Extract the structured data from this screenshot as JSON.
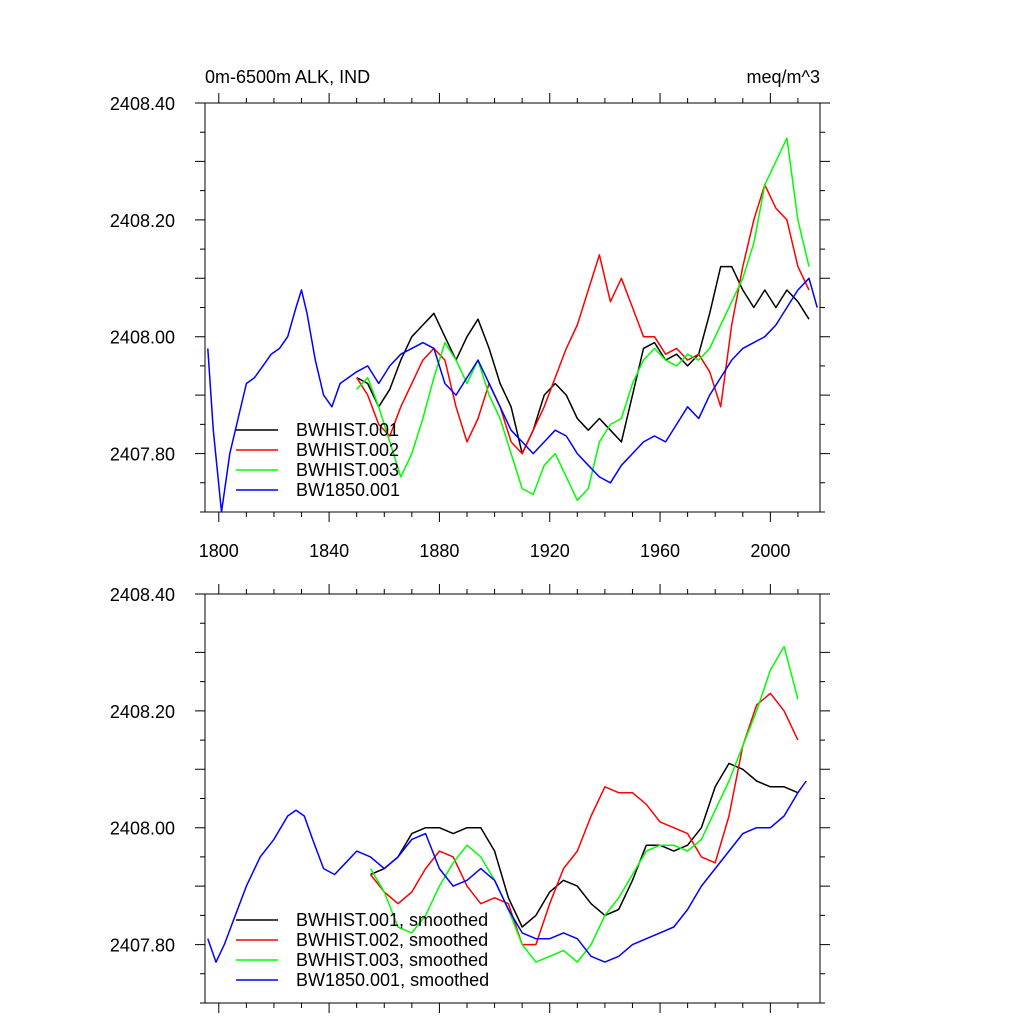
{
  "figure": {
    "title_left": "0m-6500m ALK, IND",
    "title_right": "meq/m^3"
  },
  "chart_data": [
    {
      "type": "line",
      "title": "0m-6500m ALK, IND",
      "unit_label": "meq/m^3",
      "xlim": [
        1795,
        2018
      ],
      "ylim": [
        2407.7,
        2408.4
      ],
      "x_ticks": [
        1800,
        1840,
        1880,
        1920,
        1960,
        2000
      ],
      "x_tick_labels": [
        "1800",
        "1840",
        "1880",
        "1920",
        "1960",
        "2000"
      ],
      "y_ticks": [
        2407.8,
        2408.0,
        2408.2,
        2408.4
      ],
      "y_tick_labels": [
        "2407.80",
        "2408.00",
        "2408.20",
        "2408.40"
      ],
      "legend_position": "bottom-left",
      "grid": false,
      "series": [
        {
          "name": "BWHIST.001",
          "color": "#000000",
          "x": [
            1850,
            1854,
            1858,
            1862,
            1866,
            1870,
            1874,
            1878,
            1882,
            1886,
            1890,
            1894,
            1898,
            1902,
            1906,
            1910,
            1914,
            1918,
            1922,
            1926,
            1930,
            1934,
            1938,
            1942,
            1946,
            1950,
            1954,
            1958,
            1962,
            1966,
            1970,
            1974,
            1978,
            1982,
            1986,
            1990,
            1994,
            1998,
            2002,
            2006,
            2010,
            2014
          ],
          "y": [
            2407.93,
            2407.92,
            2407.88,
            2407.91,
            2407.96,
            2408.0,
            2408.02,
            2408.04,
            2408.0,
            2407.96,
            2408.0,
            2408.03,
            2407.98,
            2407.92,
            2407.88,
            2407.8,
            2407.84,
            2407.9,
            2407.92,
            2407.9,
            2407.86,
            2407.84,
            2407.86,
            2407.84,
            2407.82,
            2407.9,
            2407.98,
            2407.99,
            2407.96,
            2407.97,
            2407.95,
            2407.97,
            2408.04,
            2408.12,
            2408.12,
            2408.08,
            2408.05,
            2408.08,
            2408.05,
            2408.08,
            2408.06,
            2408.03
          ]
        },
        {
          "name": "BWHIST.002",
          "color": "#ff0000",
          "x": [
            1850,
            1854,
            1858,
            1862,
            1866,
            1870,
            1874,
            1878,
            1882,
            1886,
            1890,
            1894,
            1898,
            1902,
            1906,
            1910,
            1914,
            1918,
            1922,
            1926,
            1930,
            1934,
            1938,
            1942,
            1946,
            1950,
            1954,
            1958,
            1962,
            1966,
            1970,
            1974,
            1978,
            1982,
            1986,
            1990,
            1994,
            1998,
            2002,
            2006,
            2010,
            2014
          ],
          "y": [
            2407.93,
            2407.9,
            2407.85,
            2407.83,
            2407.88,
            2407.92,
            2407.96,
            2407.98,
            2407.96,
            2407.88,
            2407.82,
            2407.86,
            2407.92,
            2407.88,
            2407.82,
            2407.8,
            2407.84,
            2407.88,
            2407.93,
            2407.98,
            2408.02,
            2408.08,
            2408.14,
            2408.06,
            2408.1,
            2408.05,
            2408.0,
            2408.0,
            2407.97,
            2407.98,
            2407.96,
            2407.97,
            2407.94,
            2407.88,
            2408.02,
            2408.12,
            2408.2,
            2408.26,
            2408.22,
            2408.2,
            2408.12,
            2408.08
          ]
        },
        {
          "name": "BWHIST.003",
          "color": "#00ff00",
          "x": [
            1850,
            1854,
            1858,
            1862,
            1866,
            1870,
            1874,
            1878,
            1882,
            1886,
            1890,
            1894,
            1898,
            1902,
            1906,
            1910,
            1914,
            1918,
            1922,
            1926,
            1930,
            1934,
            1938,
            1942,
            1946,
            1950,
            1954,
            1958,
            1962,
            1966,
            1970,
            1974,
            1978,
            1982,
            1986,
            1990,
            1994,
            1998,
            2002,
            2006,
            2010,
            2014
          ],
          "y": [
            2407.91,
            2407.93,
            2407.88,
            2407.82,
            2407.76,
            2407.8,
            2407.86,
            2407.93,
            2407.99,
            2407.96,
            2407.92,
            2407.96,
            2407.9,
            2407.86,
            2407.8,
            2407.74,
            2407.73,
            2407.78,
            2407.8,
            2407.76,
            2407.72,
            2407.74,
            2407.82,
            2407.85,
            2407.86,
            2407.92,
            2407.96,
            2407.98,
            2407.96,
            2407.95,
            2407.97,
            2407.96,
            2407.98,
            2408.02,
            2408.06,
            2408.1,
            2408.16,
            2408.26,
            2408.3,
            2408.34,
            2408.2,
            2408.12
          ]
        },
        {
          "name": "BW1850.001",
          "color": "#0000ff",
          "x": [
            1796,
            1798,
            1801,
            1804,
            1807,
            1810,
            1813,
            1816,
            1819,
            1822,
            1825,
            1828,
            1830,
            1832,
            1835,
            1838,
            1841,
            1844,
            1847,
            1850,
            1854,
            1858,
            1862,
            1866,
            1870,
            1874,
            1878,
            1882,
            1886,
            1890,
            1894,
            1898,
            1902,
            1906,
            1910,
            1914,
            1918,
            1922,
            1926,
            1930,
            1934,
            1938,
            1942,
            1946,
            1950,
            1954,
            1958,
            1962,
            1966,
            1970,
            1974,
            1978,
            1982,
            1986,
            1990,
            1994,
            1998,
            2002,
            2006,
            2010,
            2014,
            2017
          ],
          "y": [
            2407.98,
            2407.84,
            2407.7,
            2407.8,
            2407.86,
            2407.92,
            2407.93,
            2407.95,
            2407.97,
            2407.98,
            2408.0,
            2408.05,
            2408.08,
            2408.04,
            2407.96,
            2407.9,
            2407.88,
            2407.92,
            2407.93,
            2407.94,
            2407.95,
            2407.92,
            2407.95,
            2407.97,
            2407.98,
            2407.99,
            2407.98,
            2407.92,
            2407.9,
            2407.93,
            2407.96,
            2407.92,
            2407.88,
            2407.84,
            2407.82,
            2407.8,
            2407.82,
            2407.84,
            2407.83,
            2407.8,
            2407.78,
            2407.76,
            2407.75,
            2407.78,
            2407.8,
            2407.82,
            2407.83,
            2407.82,
            2407.85,
            2407.88,
            2407.86,
            2407.9,
            2407.93,
            2407.96,
            2407.98,
            2407.99,
            2408.0,
            2408.02,
            2408.05,
            2408.08,
            2408.1,
            2408.05
          ]
        }
      ]
    },
    {
      "type": "line",
      "title": "",
      "xlim": [
        1795,
        2018
      ],
      "ylim": [
        2407.7,
        2408.4
      ],
      "x_ticks": [
        1800,
        1840,
        1880,
        1920,
        1960,
        2000
      ],
      "x_tick_labels": [],
      "y_ticks": [
        2407.8,
        2408.0,
        2408.2,
        2408.4
      ],
      "y_tick_labels": [
        "2407.80",
        "2408.00",
        "2408.20",
        "2408.40"
      ],
      "legend_position": "bottom-left",
      "grid": false,
      "series": [
        {
          "name": "BWHIST.001, smoothed",
          "color": "#000000",
          "x": [
            1855,
            1860,
            1865,
            1870,
            1875,
            1880,
            1885,
            1890,
            1895,
            1900,
            1905,
            1910,
            1915,
            1920,
            1925,
            1930,
            1935,
            1940,
            1945,
            1950,
            1955,
            1960,
            1965,
            1970,
            1975,
            1980,
            1985,
            1990,
            1995,
            2000,
            2005,
            2010
          ],
          "y": [
            2407.92,
            2407.93,
            2407.95,
            2407.99,
            2408.0,
            2408.0,
            2407.99,
            2408.0,
            2408.0,
            2407.96,
            2407.88,
            2407.83,
            2407.85,
            2407.89,
            2407.91,
            2407.9,
            2407.87,
            2407.85,
            2407.86,
            2407.91,
            2407.97,
            2407.97,
            2407.96,
            2407.97,
            2408.0,
            2408.07,
            2408.11,
            2408.1,
            2408.08,
            2408.07,
            2408.07,
            2408.06
          ]
        },
        {
          "name": "BWHIST.002, smoothed",
          "color": "#ff0000",
          "x": [
            1855,
            1860,
            1865,
            1870,
            1875,
            1880,
            1885,
            1890,
            1895,
            1900,
            1905,
            1910,
            1915,
            1920,
            1925,
            1930,
            1935,
            1940,
            1945,
            1950,
            1955,
            1960,
            1965,
            1970,
            1975,
            1980,
            1985,
            1990,
            1995,
            2000,
            2005,
            2010
          ],
          "y": [
            2407.92,
            2407.89,
            2407.87,
            2407.89,
            2407.93,
            2407.96,
            2407.95,
            2407.9,
            2407.87,
            2407.88,
            2407.87,
            2407.8,
            2407.8,
            2407.87,
            2407.93,
            2407.96,
            2408.02,
            2408.07,
            2408.06,
            2408.06,
            2408.04,
            2408.01,
            2408.0,
            2407.99,
            2407.95,
            2407.94,
            2408.02,
            2408.14,
            2408.21,
            2408.23,
            2408.2,
            2408.15
          ]
        },
        {
          "name": "BWHIST.003, smoothed",
          "color": "#00ff00",
          "x": [
            1855,
            1860,
            1865,
            1870,
            1875,
            1880,
            1885,
            1890,
            1895,
            1900,
            1905,
            1910,
            1915,
            1920,
            1925,
            1930,
            1935,
            1940,
            1945,
            1950,
            1955,
            1960,
            1965,
            1970,
            1975,
            1980,
            1985,
            1990,
            1995,
            2000,
            2005,
            2010
          ],
          "y": [
            2407.93,
            2407.89,
            2407.83,
            2407.82,
            2407.85,
            2407.9,
            2407.94,
            2407.97,
            2407.95,
            2407.91,
            2407.86,
            2407.8,
            2407.77,
            2407.78,
            2407.79,
            2407.77,
            2407.8,
            2407.85,
            2407.88,
            2407.92,
            2407.96,
            2407.97,
            2407.97,
            2407.96,
            2407.98,
            2408.03,
            2408.08,
            2408.14,
            2408.2,
            2408.27,
            2408.31,
            2408.22
          ]
        },
        {
          "name": "BW1850.001, smoothed",
          "color": "#0000ff",
          "x": [
            1796,
            1799,
            1802,
            1806,
            1810,
            1815,
            1820,
            1825,
            1828,
            1831,
            1834,
            1838,
            1842,
            1846,
            1850,
            1855,
            1860,
            1865,
            1870,
            1875,
            1880,
            1885,
            1890,
            1895,
            1900,
            1905,
            1910,
            1915,
            1920,
            1925,
            1930,
            1935,
            1940,
            1945,
            1950,
            1955,
            1960,
            1965,
            1970,
            1975,
            1980,
            1985,
            1990,
            1995,
            2000,
            2005,
            2010,
            2013
          ],
          "y": [
            2407.81,
            2407.77,
            2407.8,
            2407.85,
            2407.9,
            2407.95,
            2407.98,
            2408.02,
            2408.03,
            2408.02,
            2407.98,
            2407.93,
            2407.92,
            2407.94,
            2407.96,
            2407.95,
            2407.93,
            2407.95,
            2407.98,
            2407.99,
            2407.93,
            2407.9,
            2407.91,
            2407.93,
            2407.91,
            2407.86,
            2407.82,
            2407.81,
            2407.81,
            2407.82,
            2407.81,
            2407.78,
            2407.77,
            2407.78,
            2407.8,
            2407.81,
            2407.82,
            2407.83,
            2407.86,
            2407.9,
            2407.93,
            2407.96,
            2407.99,
            2408.0,
            2408.0,
            2408.02,
            2408.06,
            2408.08
          ]
        }
      ]
    }
  ]
}
